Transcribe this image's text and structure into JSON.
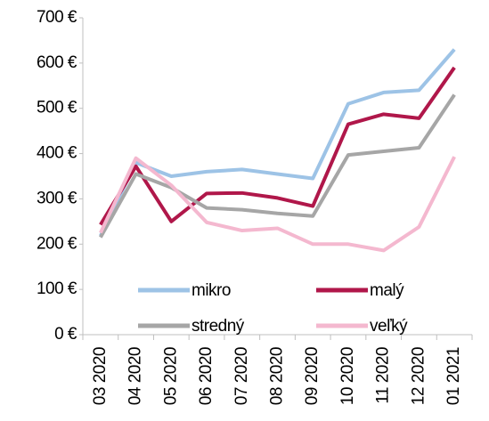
{
  "chart_data": {
    "type": "line",
    "categories": [
      "03 2020",
      "04 2020",
      "05 2020",
      "06 2020",
      "07 2020",
      "08 2020",
      "09 2020",
      "10 2020",
      "11 2020",
      "12 2020",
      "01 2021"
    ],
    "series": [
      {
        "name": "mikro",
        "color": "#9dc3e6",
        "values": [
          218,
          380,
          350,
          360,
          365,
          355,
          345,
          510,
          535,
          540,
          630
        ]
      },
      {
        "name": "malý",
        "color": "#b0174a",
        "values": [
          243,
          372,
          250,
          312,
          313,
          302,
          284,
          465,
          487,
          478,
          590
        ]
      },
      {
        "name": "stredný",
        "color": "#a6a6a6",
        "values": [
          215,
          355,
          325,
          280,
          276,
          268,
          262,
          397,
          405,
          413,
          530
        ]
      },
      {
        "name": "veľký",
        "color": "#f4b8cf",
        "values": [
          225,
          390,
          330,
          248,
          230,
          235,
          200,
          200,
          186,
          238,
          393
        ]
      }
    ],
    "ylim": [
      0,
      700
    ],
    "yticks": [
      {
        "value": 0,
        "label": "0 €"
      },
      {
        "value": 100,
        "label": "100 €"
      },
      {
        "value": 200,
        "label": "200 €"
      },
      {
        "value": 300,
        "label": "300 €"
      },
      {
        "value": 400,
        "label": "400 €"
      },
      {
        "value": 500,
        "label": "500 €"
      },
      {
        "value": 600,
        "label": "600 €"
      },
      {
        "value": 700,
        "label": "700 €"
      }
    ]
  }
}
